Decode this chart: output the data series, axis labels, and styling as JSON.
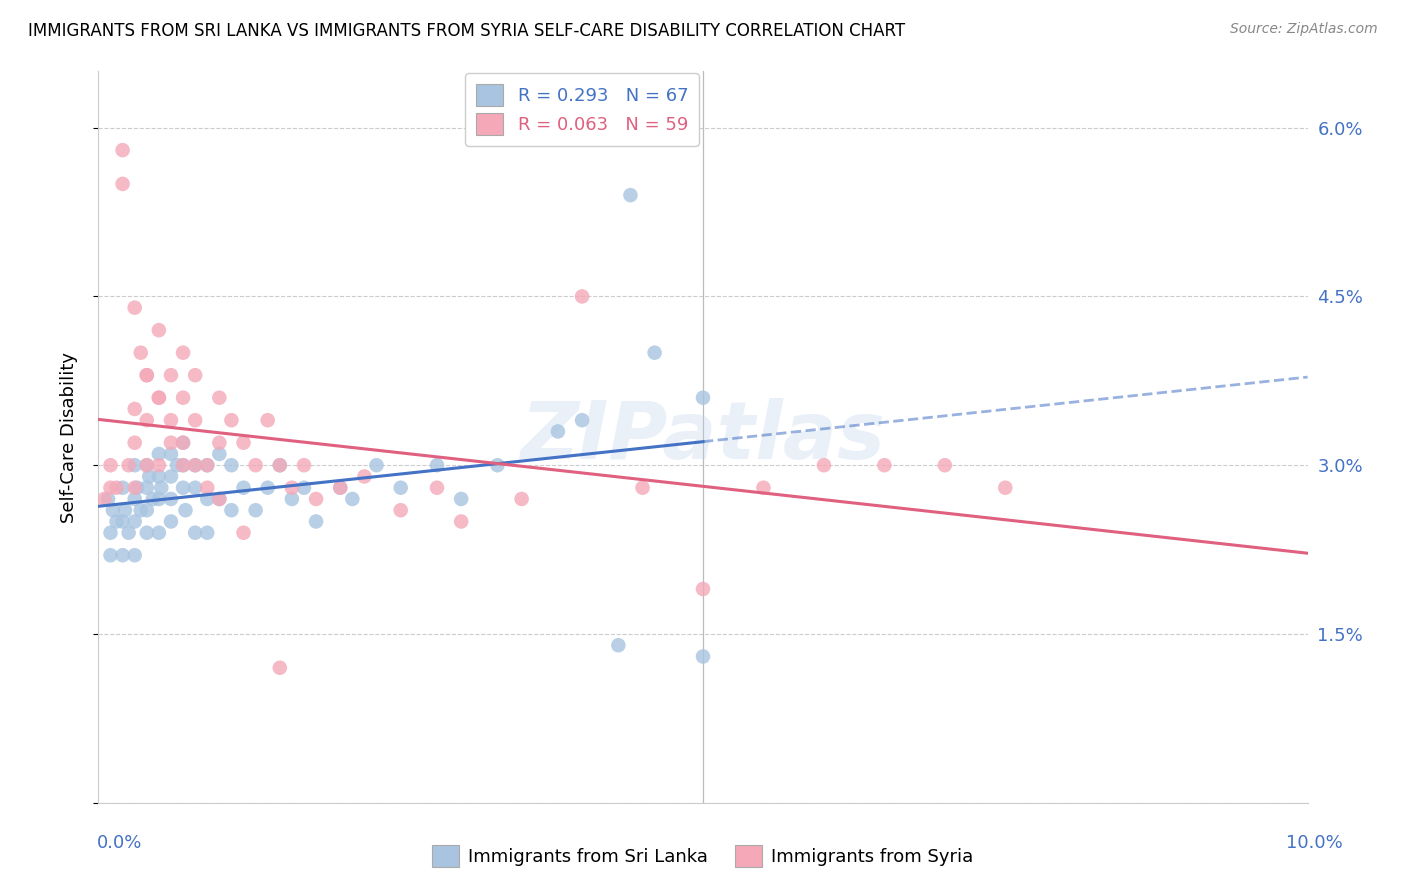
{
  "title": "IMMIGRANTS FROM SRI LANKA VS IMMIGRANTS FROM SYRIA SELF-CARE DISABILITY CORRELATION CHART",
  "source": "Source: ZipAtlas.com",
  "ylabel": "Self-Care Disability",
  "xlim": [
    0.0,
    0.1
  ],
  "ylim": [
    0.0,
    0.065
  ],
  "yticks": [
    0.0,
    0.015,
    0.03,
    0.045,
    0.06
  ],
  "ytick_labels": [
    "",
    "1.5%",
    "3.0%",
    "4.5%",
    "6.0%"
  ],
  "xtick_labels_show": [
    "0.0%",
    "10.0%"
  ],
  "sri_lanka_R": 0.293,
  "sri_lanka_N": 67,
  "syria_R": 0.063,
  "syria_N": 59,
  "sri_lanka_color": "#a8c4e0",
  "syria_color": "#f4a8b8",
  "sri_lanka_line_color": "#4472c4",
  "syria_line_color": "#e06080",
  "legend_label_1": "R = 0.293   N = 67",
  "legend_label_2": "R = 0.063   N = 59",
  "watermark": "ZIPatlas",
  "bottom_legend_1": "Immigrants from Sri Lanka",
  "bottom_legend_2": "Immigrants from Syria",
  "sri_lanka_x": [
    0.0008,
    0.001,
    0.001,
    0.0012,
    0.0015,
    0.002,
    0.002,
    0.002,
    0.0022,
    0.0025,
    0.003,
    0.003,
    0.003,
    0.003,
    0.0032,
    0.0035,
    0.004,
    0.004,
    0.004,
    0.004,
    0.0042,
    0.0045,
    0.005,
    0.005,
    0.005,
    0.005,
    0.0052,
    0.006,
    0.006,
    0.006,
    0.006,
    0.0065,
    0.007,
    0.007,
    0.007,
    0.0072,
    0.008,
    0.008,
    0.008,
    0.009,
    0.009,
    0.009,
    0.01,
    0.01,
    0.011,
    0.011,
    0.012,
    0.013,
    0.014,
    0.015,
    0.016,
    0.017,
    0.018,
    0.02,
    0.021,
    0.023,
    0.025,
    0.028,
    0.03,
    0.033,
    0.038,
    0.04,
    0.044,
    0.046,
    0.05,
    0.043,
    0.05
  ],
  "sri_lanka_y": [
    0.027,
    0.024,
    0.022,
    0.026,
    0.025,
    0.028,
    0.025,
    0.022,
    0.026,
    0.024,
    0.03,
    0.027,
    0.025,
    0.022,
    0.028,
    0.026,
    0.03,
    0.028,
    0.026,
    0.024,
    0.029,
    0.027,
    0.031,
    0.029,
    0.027,
    0.024,
    0.028,
    0.031,
    0.029,
    0.027,
    0.025,
    0.03,
    0.032,
    0.03,
    0.028,
    0.026,
    0.03,
    0.028,
    0.024,
    0.03,
    0.027,
    0.024,
    0.031,
    0.027,
    0.03,
    0.026,
    0.028,
    0.026,
    0.028,
    0.03,
    0.027,
    0.028,
    0.025,
    0.028,
    0.027,
    0.03,
    0.028,
    0.03,
    0.027,
    0.03,
    0.033,
    0.034,
    0.054,
    0.04,
    0.036,
    0.014,
    0.013
  ],
  "syria_x": [
    0.0005,
    0.001,
    0.001,
    0.0015,
    0.002,
    0.002,
    0.0025,
    0.003,
    0.003,
    0.003,
    0.0035,
    0.004,
    0.004,
    0.004,
    0.005,
    0.005,
    0.005,
    0.006,
    0.006,
    0.007,
    0.007,
    0.007,
    0.008,
    0.008,
    0.009,
    0.01,
    0.01,
    0.011,
    0.012,
    0.013,
    0.014,
    0.015,
    0.016,
    0.017,
    0.018,
    0.02,
    0.022,
    0.025,
    0.028,
    0.03,
    0.035,
    0.04,
    0.045,
    0.05,
    0.055,
    0.06,
    0.065,
    0.07,
    0.075,
    0.003,
    0.004,
    0.005,
    0.006,
    0.007,
    0.008,
    0.009,
    0.01,
    0.012,
    0.015
  ],
  "syria_y": [
    0.027,
    0.03,
    0.028,
    0.028,
    0.058,
    0.055,
    0.03,
    0.035,
    0.032,
    0.028,
    0.04,
    0.038,
    0.034,
    0.03,
    0.042,
    0.036,
    0.03,
    0.038,
    0.032,
    0.04,
    0.036,
    0.03,
    0.038,
    0.034,
    0.03,
    0.036,
    0.032,
    0.034,
    0.032,
    0.03,
    0.034,
    0.03,
    0.028,
    0.03,
    0.027,
    0.028,
    0.029,
    0.026,
    0.028,
    0.025,
    0.027,
    0.045,
    0.028,
    0.019,
    0.028,
    0.03,
    0.03,
    0.03,
    0.028,
    0.044,
    0.038,
    0.036,
    0.034,
    0.032,
    0.03,
    0.028,
    0.027,
    0.024,
    0.012
  ]
}
